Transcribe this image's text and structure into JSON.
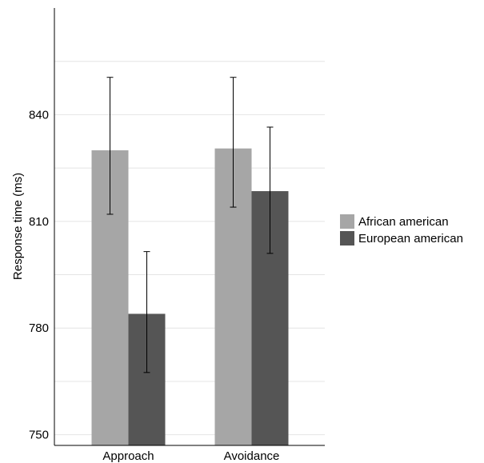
{
  "chart_data": {
    "type": "bar",
    "title": "",
    "xlabel": "",
    "ylabel": "Response time (ms)",
    "categories": [
      "Approach",
      "Avoidance"
    ],
    "series": [
      {
        "name": "African american",
        "color": "#a6a6a6",
        "values": [
          830,
          830.5
        ],
        "error_low": [
          812,
          814
        ],
        "error_high": [
          850.5,
          850.5
        ]
      },
      {
        "name": "European american",
        "color": "#555555",
        "values": [
          784,
          818.5
        ],
        "error_low": [
          767.5,
          801
        ],
        "error_high": [
          801.5,
          836.5
        ]
      }
    ],
    "ylim": [
      747,
      870
    ],
    "yticks": [
      750,
      780,
      810,
      840
    ],
    "minor_gridlines": [
      765,
      795,
      825,
      855
    ],
    "grid": true,
    "legend_position": "right"
  }
}
